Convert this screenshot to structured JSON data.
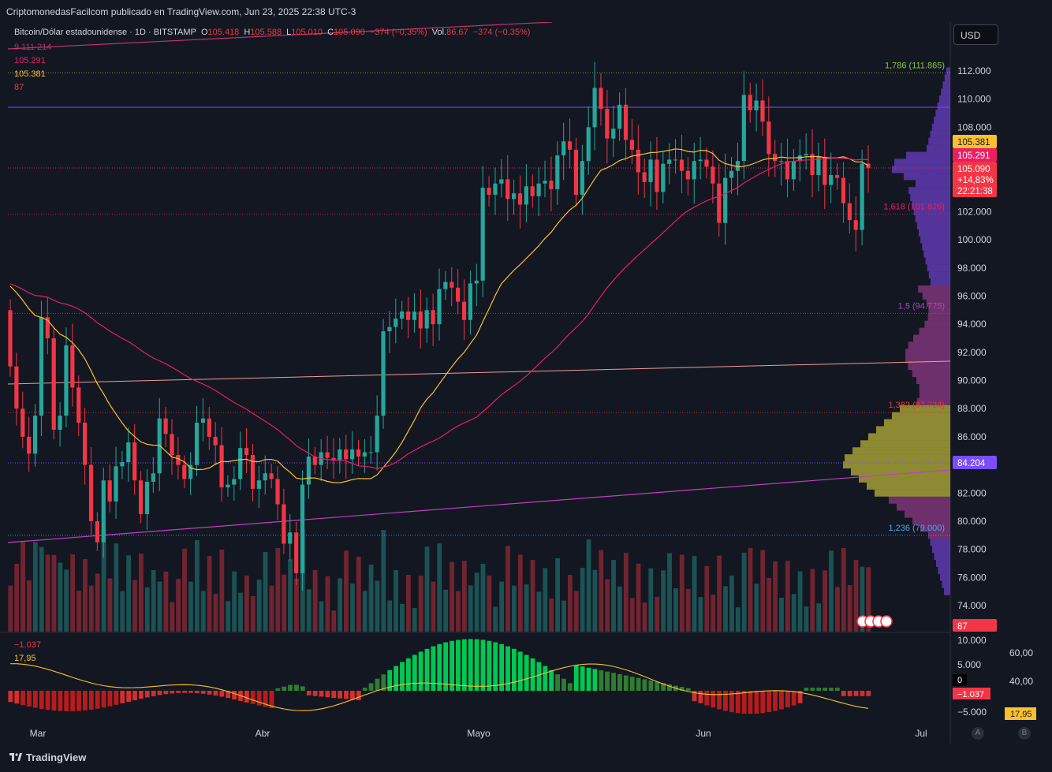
{
  "header": {
    "publisher": "CriptomonedasFacilcom publicado en TradingView.com, Jun 23, 2025 22:38 UTC-3"
  },
  "legend": {
    "symbol": "Bitcoin/Dólar estadounidense · 1D · BITSTAMP",
    "o_label": "O",
    "o_value": "105.418",
    "h_label": "H",
    "h_value": "105.588",
    "l_label": "L",
    "l_value": "105.010",
    "c_label": "C",
    "c_value": "105.090",
    "change": "−374 (−0,35%)",
    "vol_label": "Vol.",
    "vol_value": "86,67",
    "vol_change": "−374 (−0,35%)",
    "line1": "9  111  214",
    "line2": "105.291",
    "line3": "105.381",
    "line4": "87"
  },
  "currency_button": "USD",
  "price_labels": {
    "ma_yellow": "105.381",
    "ma_pink": "105.291",
    "last_price": "105.090",
    "last_change": "+14,83%",
    "countdown": "22:21:38",
    "poc": "84.204",
    "volume": "87"
  },
  "fib_labels": [
    {
      "text": "1,786 (111.865)",
      "price": 111865,
      "color": "#8bc34a"
    },
    {
      "text": "1,618 (101.826)",
      "price": 101826,
      "color": "#e91e63"
    },
    {
      "text": "1,5 (94.775)",
      "price": 94775,
      "color": "#ab47bc"
    },
    {
      "text": "1,382 (87.724)",
      "price": 87724,
      "color": "#e53935"
    },
    {
      "text": "1,236 (79.000)",
      "price": 79000,
      "color": "#42a5f5"
    }
  ],
  "osc_labels": {
    "value": "−1.037",
    "zero": "0",
    "signal": "17,95",
    "scale_right": [
      "60,00",
      "40,00"
    ],
    "axis": [
      "10.000",
      "5.000",
      "−5.000"
    ]
  },
  "footer": {
    "brand": "TradingView",
    "btn_a": "A",
    "btn_b": "B"
  },
  "chart_data": {
    "type": "candlestick",
    "symbol": "BTCUSD",
    "timeframe": "1D",
    "y_axis": [
      "112.000",
      "110.000",
      "108.000",
      "106.000",
      "104.000",
      "102.000",
      "100.000",
      "98.000",
      "96.000",
      "94.000",
      "92.000",
      "90.000",
      "88.000",
      "86.000",
      "84.000",
      "82.000",
      "80.000",
      "78.000",
      "76.000",
      "74.000"
    ],
    "x_axis": [
      "Mar",
      "Abr",
      "Mayo",
      "Jun",
      "Jul"
    ],
    "ylim": [
      73000,
      116000
    ],
    "closes": [
      91000,
      88000,
      86000,
      84800,
      87500,
      94500,
      93000,
      86500,
      87500,
      92500,
      89500,
      87000,
      84000,
      80000,
      78500,
      82900,
      81400,
      83900,
      84200,
      85600,
      82900,
      80500,
      82800,
      83400,
      87300,
      86200,
      84700,
      84000,
      83000,
      84000,
      87000,
      87300,
      86000,
      85400,
      82400,
      82600,
      83000,
      85200,
      84700,
      82300,
      82900,
      83400,
      83000,
      81200,
      78400,
      79200,
      76300,
      82600,
      84600,
      84000,
      84900,
      84500,
      84300,
      85100,
      84400,
      85100,
      84600,
      84900,
      84900,
      87500,
      93500,
      93800,
      94400,
      94900,
      94300,
      94900,
      93700,
      95000,
      94000,
      96500,
      97000,
      96600,
      95600,
      94300,
      96900,
      97100,
      103700,
      103200,
      104000,
      104300,
      102900,
      103300,
      102500,
      103800,
      103100,
      104000,
      104200,
      103600,
      106000,
      107000,
      106400,
      103200,
      105600,
      108000,
      110800,
      109300,
      107200,
      107900,
      109600,
      107100,
      106400,
      104800,
      104100,
      105700,
      103400,
      105400,
      105700,
      105700,
      104900,
      104300,
      105600,
      105700,
      105200,
      104000,
      101200,
      104400,
      104900,
      105600,
      110300,
      109200,
      109900,
      108400,
      106100,
      105600,
      105600,
      104300,
      105600,
      106000,
      106100,
      104600,
      105900,
      103900,
      104600,
      104400,
      102600,
      101400,
      100700,
      105418,
      105090
    ],
    "ma_yellow_last": 105381,
    "ma_pink_last": 105291,
    "last_change_percent": 14.83
  }
}
